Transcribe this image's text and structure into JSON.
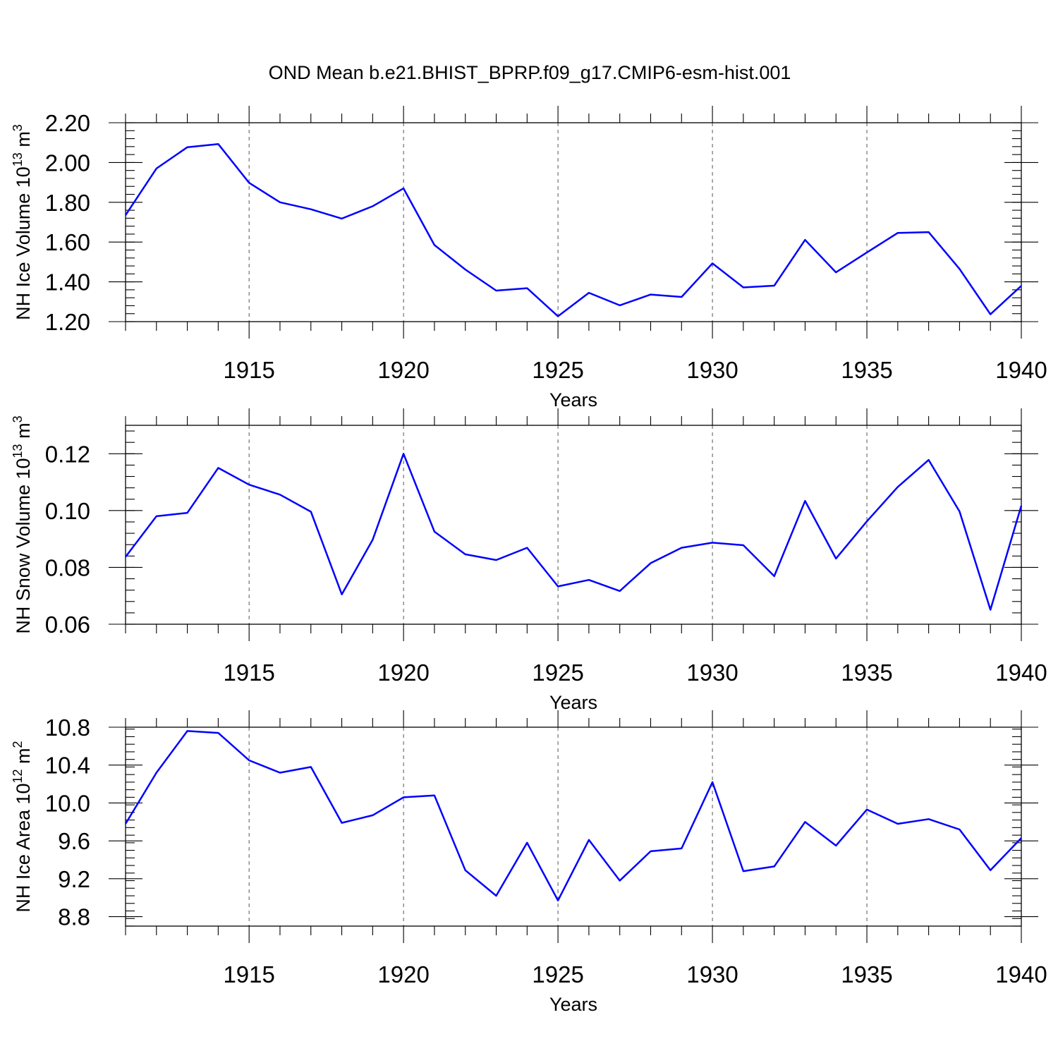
{
  "title": "OND Mean b.e21.BHIST_BPRP.f09_g17.CMIP6-esm-hist.001",
  "colors": {
    "series": "#0000ff",
    "axis": "#000000",
    "grid": "#555555"
  },
  "chart_data": [
    {
      "type": "line",
      "ylabel": "NH Ice Volume 10",
      "ylabel_exp": "13",
      "ylabel_unit": " m",
      "ylabel_unit_exp": "3",
      "xlabel": "Years",
      "xlim": [
        1911,
        1940
      ],
      "ylim": [
        1.2,
        2.2
      ],
      "grid": "vertical dashed at major x ticks",
      "x_ticks": [
        1915,
        1920,
        1925,
        1930,
        1935,
        1940
      ],
      "x_tick_labels": [
        "1915",
        "1920",
        "1925",
        "1930",
        "1935",
        "1940"
      ],
      "y_ticks": [
        1.2,
        1.4,
        1.6,
        1.8,
        2.0,
        2.2
      ],
      "y_tick_labels": [
        "1.20",
        "1.40",
        "1.60",
        "1.80",
        "2.00",
        "2.20"
      ],
      "y_minor_step": 0.04,
      "x": [
        1911,
        1912,
        1913,
        1914,
        1915,
        1916,
        1917,
        1918,
        1919,
        1920,
        1921,
        1922,
        1923,
        1924,
        1925,
        1926,
        1927,
        1928,
        1929,
        1930,
        1931,
        1932,
        1933,
        1934,
        1935,
        1936,
        1937,
        1938,
        1939,
        1940
      ],
      "series": [
        {
          "values": [
            1.735,
            1.97,
            2.077,
            2.093,
            1.898,
            1.8,
            1.765,
            1.718,
            1.78,
            1.87,
            1.585,
            1.462,
            1.356,
            1.368,
            1.227,
            1.345,
            1.282,
            1.336,
            1.324,
            1.493,
            1.372,
            1.381,
            1.611,
            1.448,
            1.548,
            1.646,
            1.65,
            1.465,
            1.237,
            1.38
          ]
        }
      ]
    },
    {
      "type": "line",
      "ylabel": "NH Snow Volume 10",
      "ylabel_exp": "13",
      "ylabel_unit": " m",
      "ylabel_unit_exp": "3",
      "xlabel": "Years",
      "xlim": [
        1911,
        1940
      ],
      "ylim": [
        0.06,
        0.13
      ],
      "grid": "vertical dashed at major x ticks",
      "x_ticks": [
        1915,
        1920,
        1925,
        1930,
        1935,
        1940
      ],
      "x_tick_labels": [
        "1915",
        "1920",
        "1925",
        "1930",
        "1935",
        "1940"
      ],
      "y_ticks": [
        0.06,
        0.08,
        0.1,
        0.12
      ],
      "y_tick_labels": [
        "0.06",
        "0.08",
        "0.10",
        "0.12"
      ],
      "y_minor_step": 0.004,
      "x": [
        1911,
        1912,
        1913,
        1914,
        1915,
        1916,
        1917,
        1918,
        1919,
        1920,
        1921,
        1922,
        1923,
        1924,
        1925,
        1926,
        1927,
        1928,
        1929,
        1930,
        1931,
        1932,
        1933,
        1934,
        1935,
        1936,
        1937,
        1938,
        1939,
        1940
      ],
      "series": [
        {
          "values": [
            0.0837,
            0.098,
            0.0992,
            0.115,
            0.1091,
            0.1056,
            0.0996,
            0.0705,
            0.0897,
            0.12,
            0.0926,
            0.0846,
            0.0826,
            0.0869,
            0.0733,
            0.0756,
            0.0717,
            0.0815,
            0.0869,
            0.0887,
            0.0878,
            0.0769,
            0.1034,
            0.0831,
            0.0962,
            0.1083,
            0.1178,
            0.0997,
            0.0651,
            0.1017
          ]
        }
      ]
    },
    {
      "type": "line",
      "ylabel": "NH Ice Area 10",
      "ylabel_exp": "12",
      "ylabel_unit": " m",
      "ylabel_unit_exp": "2",
      "xlabel": "Years",
      "xlim": [
        1911,
        1940
      ],
      "ylim": [
        8.7,
        10.8
      ],
      "grid": "vertical dashed at major x ticks",
      "x_ticks": [
        1915,
        1920,
        1925,
        1930,
        1935,
        1940
      ],
      "x_tick_labels": [
        "1915",
        "1920",
        "1925",
        "1930",
        "1935",
        "1940"
      ],
      "y_ticks": [
        8.8,
        9.2,
        9.6,
        10.0,
        10.4,
        10.8
      ],
      "y_tick_labels": [
        "8.8",
        "9.2",
        "9.6",
        "10.0",
        "10.4",
        "10.8"
      ],
      "y_minor_step": 0.08,
      "x": [
        1911,
        1912,
        1913,
        1914,
        1915,
        1916,
        1917,
        1918,
        1919,
        1920,
        1921,
        1922,
        1923,
        1924,
        1925,
        1926,
        1927,
        1928,
        1929,
        1930,
        1931,
        1932,
        1933,
        1934,
        1935,
        1936,
        1937,
        1938,
        1939,
        1940
      ],
      "series": [
        {
          "values": [
            9.78,
            10.32,
            10.76,
            10.74,
            10.45,
            10.32,
            10.38,
            9.79,
            9.87,
            10.06,
            10.08,
            9.29,
            9.02,
            9.58,
            8.97,
            9.61,
            9.18,
            9.49,
            9.52,
            10.22,
            9.28,
            9.33,
            9.8,
            9.55,
            9.93,
            9.78,
            9.83,
            9.72,
            9.29,
            9.63
          ]
        }
      ]
    }
  ]
}
